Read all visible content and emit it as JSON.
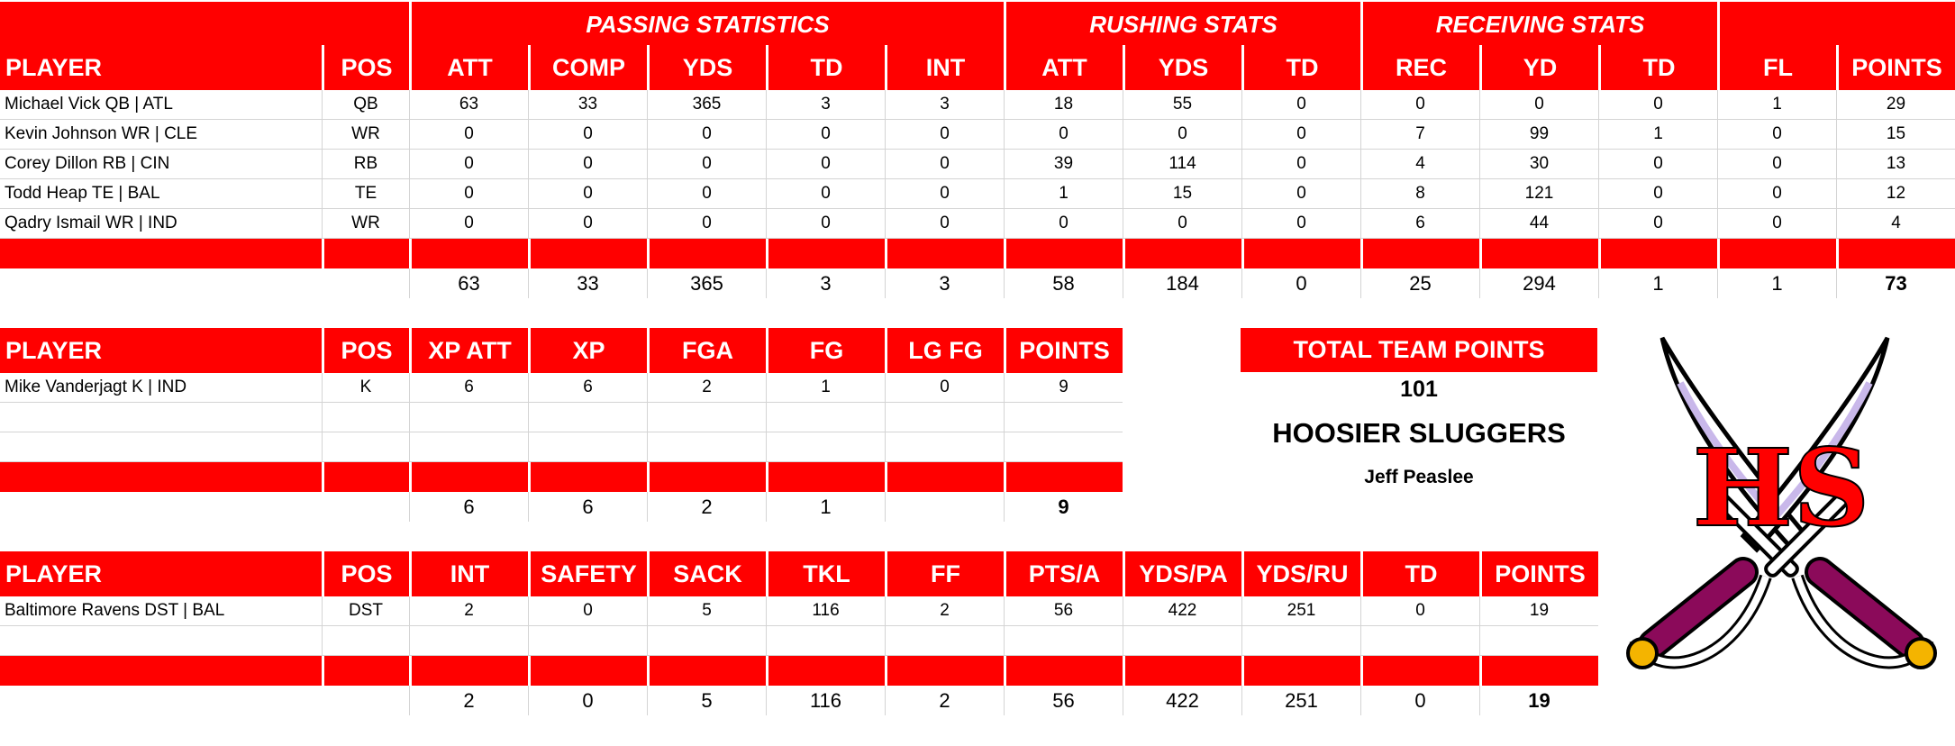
{
  "colors": {
    "header_bg": "#ff0000",
    "header_text": "#ffffff",
    "grid": "#d4d4d4"
  },
  "offense": {
    "groups": [
      {
        "label": "",
        "span": "player_pos"
      },
      {
        "label": "PASSING STATISTICS"
      },
      {
        "label": "RUSHING STATS"
      },
      {
        "label": "RECEIVING STATS"
      },
      {
        "label": ""
      }
    ],
    "headers": [
      "PLAYER",
      "POS",
      "ATT",
      "COMP",
      "YDS",
      "TD",
      "INT",
      "ATT",
      "YDS",
      "TD",
      "REC",
      "YD",
      "TD",
      "FL",
      "POINTS"
    ],
    "rows": [
      [
        "Michael Vick QB | ATL",
        "QB",
        "63",
        "33",
        "365",
        "3",
        "3",
        "18",
        "55",
        "0",
        "0",
        "0",
        "0",
        "1",
        "29"
      ],
      [
        "Kevin Johnson WR | CLE",
        "WR",
        "0",
        "0",
        "0",
        "0",
        "0",
        "0",
        "0",
        "0",
        "7",
        "99",
        "1",
        "0",
        "15"
      ],
      [
        "Corey Dillon RB | CIN",
        "RB",
        "0",
        "0",
        "0",
        "0",
        "0",
        "39",
        "114",
        "0",
        "4",
        "30",
        "0",
        "0",
        "13"
      ],
      [
        "Todd Heap TE | BAL",
        "TE",
        "0",
        "0",
        "0",
        "0",
        "0",
        "1",
        "15",
        "0",
        "8",
        "121",
        "0",
        "0",
        "12"
      ],
      [
        "Qadry Ismail WR | IND",
        "WR",
        "0",
        "0",
        "0",
        "0",
        "0",
        "0",
        "0",
        "0",
        "6",
        "44",
        "0",
        "0",
        "4"
      ]
    ],
    "totals": [
      "",
      "",
      "63",
      "33",
      "365",
      "3",
      "3",
      "58",
      "184",
      "0",
      "25",
      "294",
      "1",
      "1",
      "73"
    ]
  },
  "kicker": {
    "headers": [
      "PLAYER",
      "POS",
      "XP ATT",
      "XP",
      "FGA",
      "FG",
      "LG FG",
      "POINTS"
    ],
    "rows": [
      [
        "Mike Vanderjagt K | IND",
        "K",
        "6",
        "6",
        "2",
        "1",
        "0",
        "9"
      ],
      [
        "",
        "",
        "",
        "",
        "",
        "",
        "",
        ""
      ],
      [
        "",
        "",
        "",
        "",
        "",
        "",
        "",
        ""
      ]
    ],
    "totals": [
      "",
      "",
      "6",
      "6",
      "2",
      "1",
      "",
      "9"
    ]
  },
  "defense": {
    "headers": [
      "PLAYER",
      "POS",
      "INT",
      "SAFETY",
      "SACK",
      "TKL",
      "FF",
      "PTS/A",
      "YDS/PA",
      "YDS/RU",
      "TD",
      "POINTS"
    ],
    "rows": [
      [
        "Baltimore Ravens DST | BAL",
        "DST",
        "2",
        "0",
        "5",
        "116",
        "2",
        "56",
        "422",
        "251",
        "0",
        "19"
      ],
      [
        "",
        "",
        "",
        "",
        "",
        "",
        "",
        "",
        "",
        "",
        "",
        ""
      ]
    ],
    "totals": [
      "",
      "",
      "2",
      "0",
      "5",
      "116",
      "2",
      "56",
      "422",
      "251",
      "0",
      "19"
    ]
  },
  "team": {
    "total_label": "TOTAL TEAM POINTS",
    "total_points": "101",
    "team_name": "HOOSIER SLUGGERS",
    "owner": "Jeff Peaslee",
    "logo_text": "HS",
    "logo_icon": "crossed-swords-logo"
  }
}
